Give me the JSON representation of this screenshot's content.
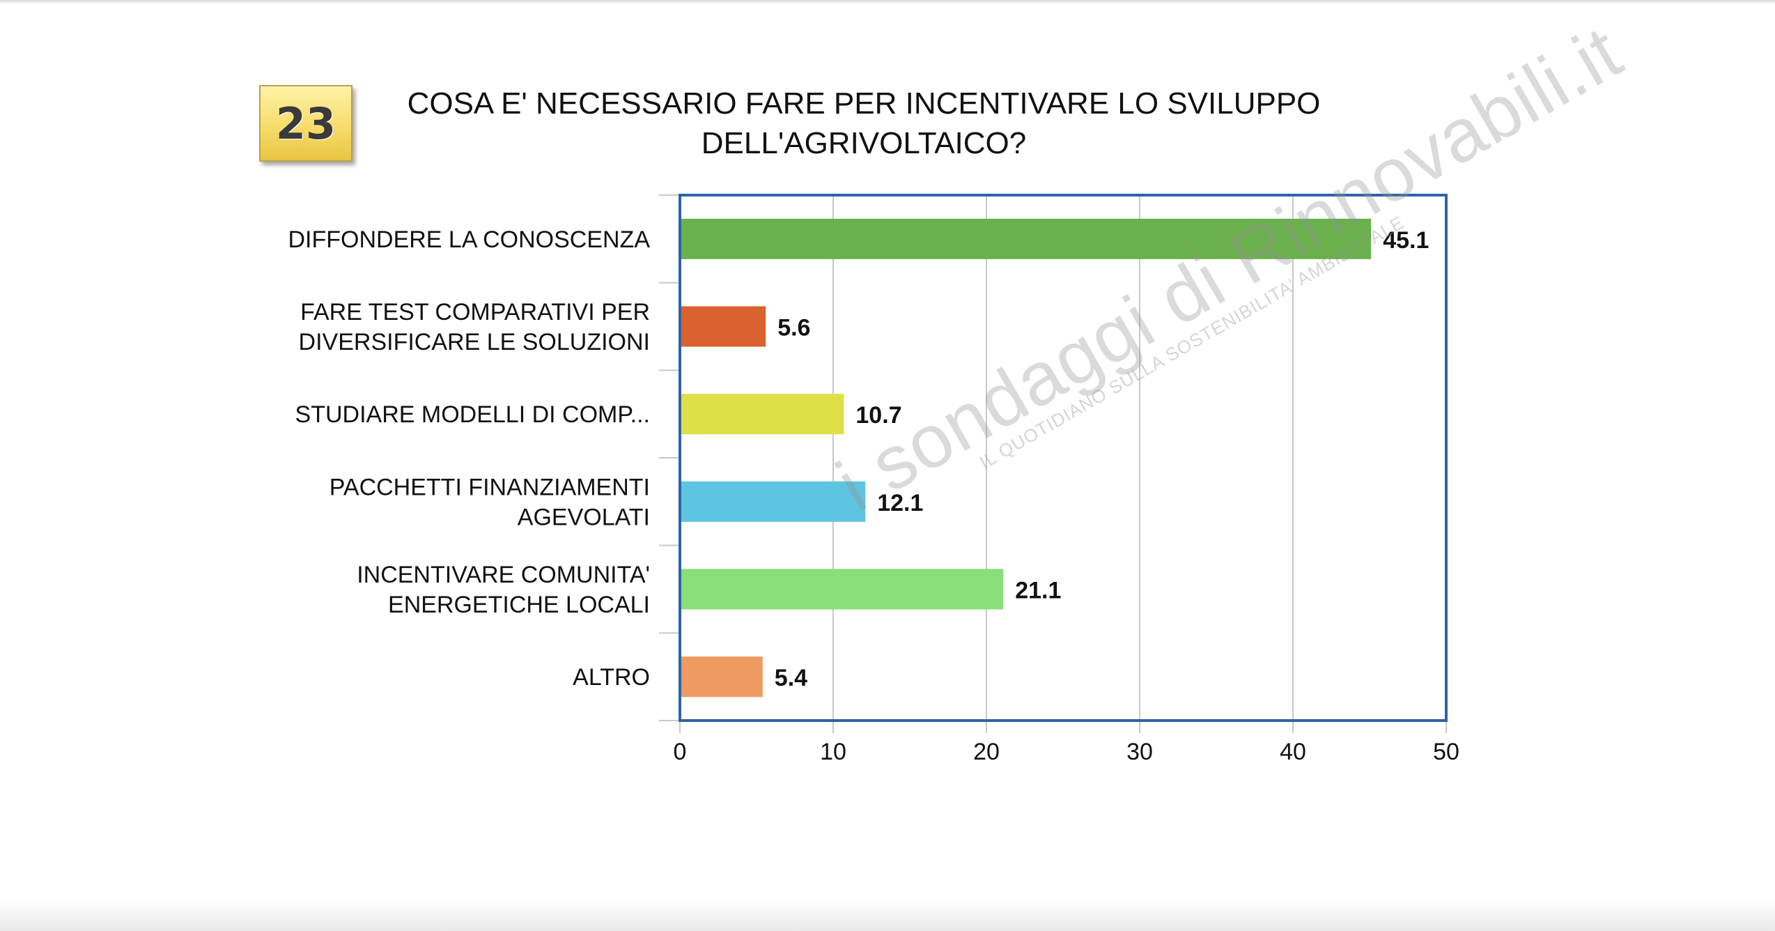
{
  "badge": {
    "number": "23"
  },
  "title_lines": [
    "COSA E' NECESSARIO FARE PER INCENTIVARE LO SVILUPPO",
    "DELL'AGRIVOLTAICO?"
  ],
  "watermark": {
    "brand": "i sondaggi di Rinnovabili.it",
    "tagline": "IL QUOTIDIANO SULLA SOSTENIBILITA' AMBIENTALE"
  },
  "chart_data": {
    "type": "bar",
    "orientation": "horizontal",
    "title": "COSA E' NECESSARIO FARE PER INCENTIVARE LO SVILUPPO DELL'AGRIVOLTAICO?",
    "categories": [
      [
        "DIFFONDERE LA CONOSCENZA"
      ],
      [
        "FARE TEST COMPARATIVI PER",
        "DIVERSIFICARE LE SOLUZIONI"
      ],
      [
        "STUDIARE MODELLI DI COMP..."
      ],
      [
        "PACCHETTI FINANZIAMENTI",
        "AGEVOLATI"
      ],
      [
        "INCENTIVARE COMUNITA'",
        "ENERGETICHE LOCALI"
      ],
      [
        "ALTRO"
      ]
    ],
    "values": [
      45.1,
      5.6,
      10.7,
      12.1,
      21.1,
      5.4
    ],
    "value_labels": [
      "45.1",
      "5.6",
      "10.7",
      "12.1",
      "21.1",
      "5.4"
    ],
    "colors": [
      "#6ab04c",
      "#d9622e",
      "#dfdf48",
      "#5fc4e0",
      "#88df7a",
      "#ee9a62"
    ],
    "xlim": [
      0,
      50
    ],
    "xticks": [
      0,
      10,
      20,
      30,
      40,
      50
    ],
    "xtick_labels": [
      "0",
      "10",
      "20",
      "30",
      "40",
      "50"
    ],
    "grid": true,
    "frame_color": "#2e64a6",
    "grid_color": "#c8c8c8",
    "legend": "none",
    "xlabel": "",
    "ylabel": ""
  }
}
